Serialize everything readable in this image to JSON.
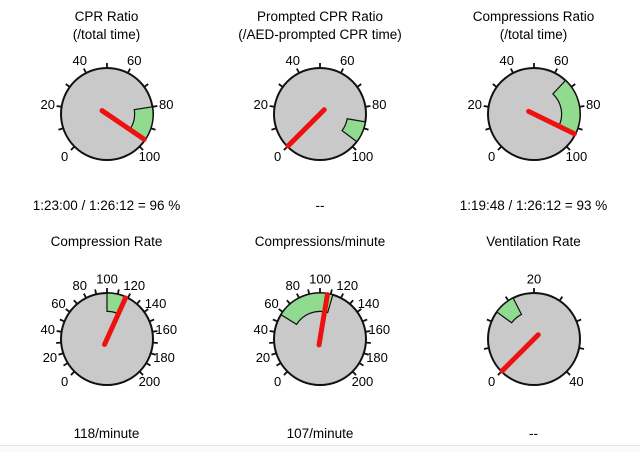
{
  "page": {
    "background": "#ffffff"
  },
  "colors": {
    "dial_fill": "#c9c9c9",
    "dial_outline": "#111111",
    "green_zone": "#90db90",
    "needle": "#ee1111",
    "text": "#000000"
  },
  "gauge_layout": {
    "angle_range": [
      225,
      -45
    ],
    "legend": "radial gauge, 270-degree sweep, min at lower-left, max at lower-right"
  },
  "chart_data": [
    {
      "type": "gauge",
      "title": "CPR Ratio",
      "subtitle": "(/total time)",
      "min": 0,
      "max": 100,
      "label_step": 20,
      "tick_step": 10,
      "green_zone": [
        80,
        96
      ],
      "needle_value": 96,
      "value_label": "1:23:00 / 1:26:12 = 96 %"
    },
    {
      "type": "gauge",
      "title": "Prompted CPR Ratio",
      "subtitle": "(/AED-prompted CPR time)",
      "min": 0,
      "max": 100,
      "label_step": 20,
      "tick_step": 10,
      "green_zone": [
        87,
        97
      ],
      "needle_value": 0,
      "value_label": "--"
    },
    {
      "type": "gauge",
      "title": "Compressions Ratio",
      "subtitle": "(/total time)",
      "min": 0,
      "max": 100,
      "label_step": 20,
      "tick_step": 10,
      "green_zone": [
        66,
        93
      ],
      "needle_value": 93,
      "value_label": "1:19:48 / 1:26:12 = 93 %"
    },
    {
      "type": "gauge",
      "title": "Compression Rate",
      "subtitle": "",
      "min": 0,
      "max": 200,
      "label_step": 20,
      "tick_step": 10,
      "green_zone": [
        100,
        117
      ],
      "needle_value": 118,
      "value_label": "118/minute"
    },
    {
      "type": "gauge",
      "title": "Compressions/minute",
      "subtitle": "",
      "min": 0,
      "max": 200,
      "label_step": 20,
      "tick_step": 10,
      "green_zone": [
        57,
        112
      ],
      "needle_value": 107,
      "value_label": "107/minute"
    },
    {
      "type": "gauge",
      "title": "Ventilation Rate",
      "subtitle": "",
      "min": 0,
      "max": 40,
      "label_step": 20,
      "tick_step": 5,
      "green_zone": [
        12,
        16
      ],
      "needle_value": 0,
      "value_label": "--"
    }
  ]
}
